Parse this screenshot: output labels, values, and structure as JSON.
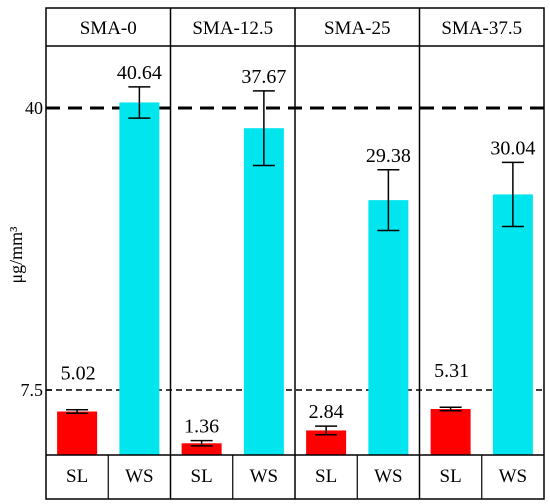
{
  "chart_data": {
    "type": "bar",
    "ylabel": "μg/mm³",
    "yticks": [
      {
        "value": 7.5,
        "label": "7.5"
      },
      {
        "value": 40,
        "label": "40"
      }
    ],
    "reference_lines": [
      {
        "value": 40,
        "style": "long-dash"
      },
      {
        "value": 7.5,
        "style": "short-dash"
      }
    ],
    "categories": [
      "SL",
      "WS"
    ],
    "panels": [
      {
        "title": "SMA-0",
        "bars": [
          {
            "category": "SL",
            "value": 5.02,
            "label": "5.02",
            "err": 0.2
          },
          {
            "category": "WS",
            "value": 40.64,
            "label": "40.64",
            "err": 1.8
          }
        ]
      },
      {
        "title": "SMA-12.5",
        "bars": [
          {
            "category": "SL",
            "value": 1.36,
            "label": "1.36",
            "err": 0.3
          },
          {
            "category": "WS",
            "value": 37.67,
            "label": "37.67",
            "err": 4.3
          }
        ]
      },
      {
        "title": "SMA-25",
        "bars": [
          {
            "category": "SL",
            "value": 2.84,
            "label": "2.84",
            "err": 0.5
          },
          {
            "category": "WS",
            "value": 29.38,
            "label": "29.38",
            "err": 3.5
          }
        ]
      },
      {
        "title": "SMA-37.5",
        "bars": [
          {
            "category": "SL",
            "value": 5.31,
            "label": "5.31",
            "err": 0.2
          },
          {
            "category": "WS",
            "value": 30.04,
            "label": "30.04",
            "err": 3.7
          }
        ]
      }
    ],
    "colors": {
      "SL": "#ff0000",
      "WS": "#00e5ee"
    },
    "grid": false,
    "legend": "none"
  }
}
